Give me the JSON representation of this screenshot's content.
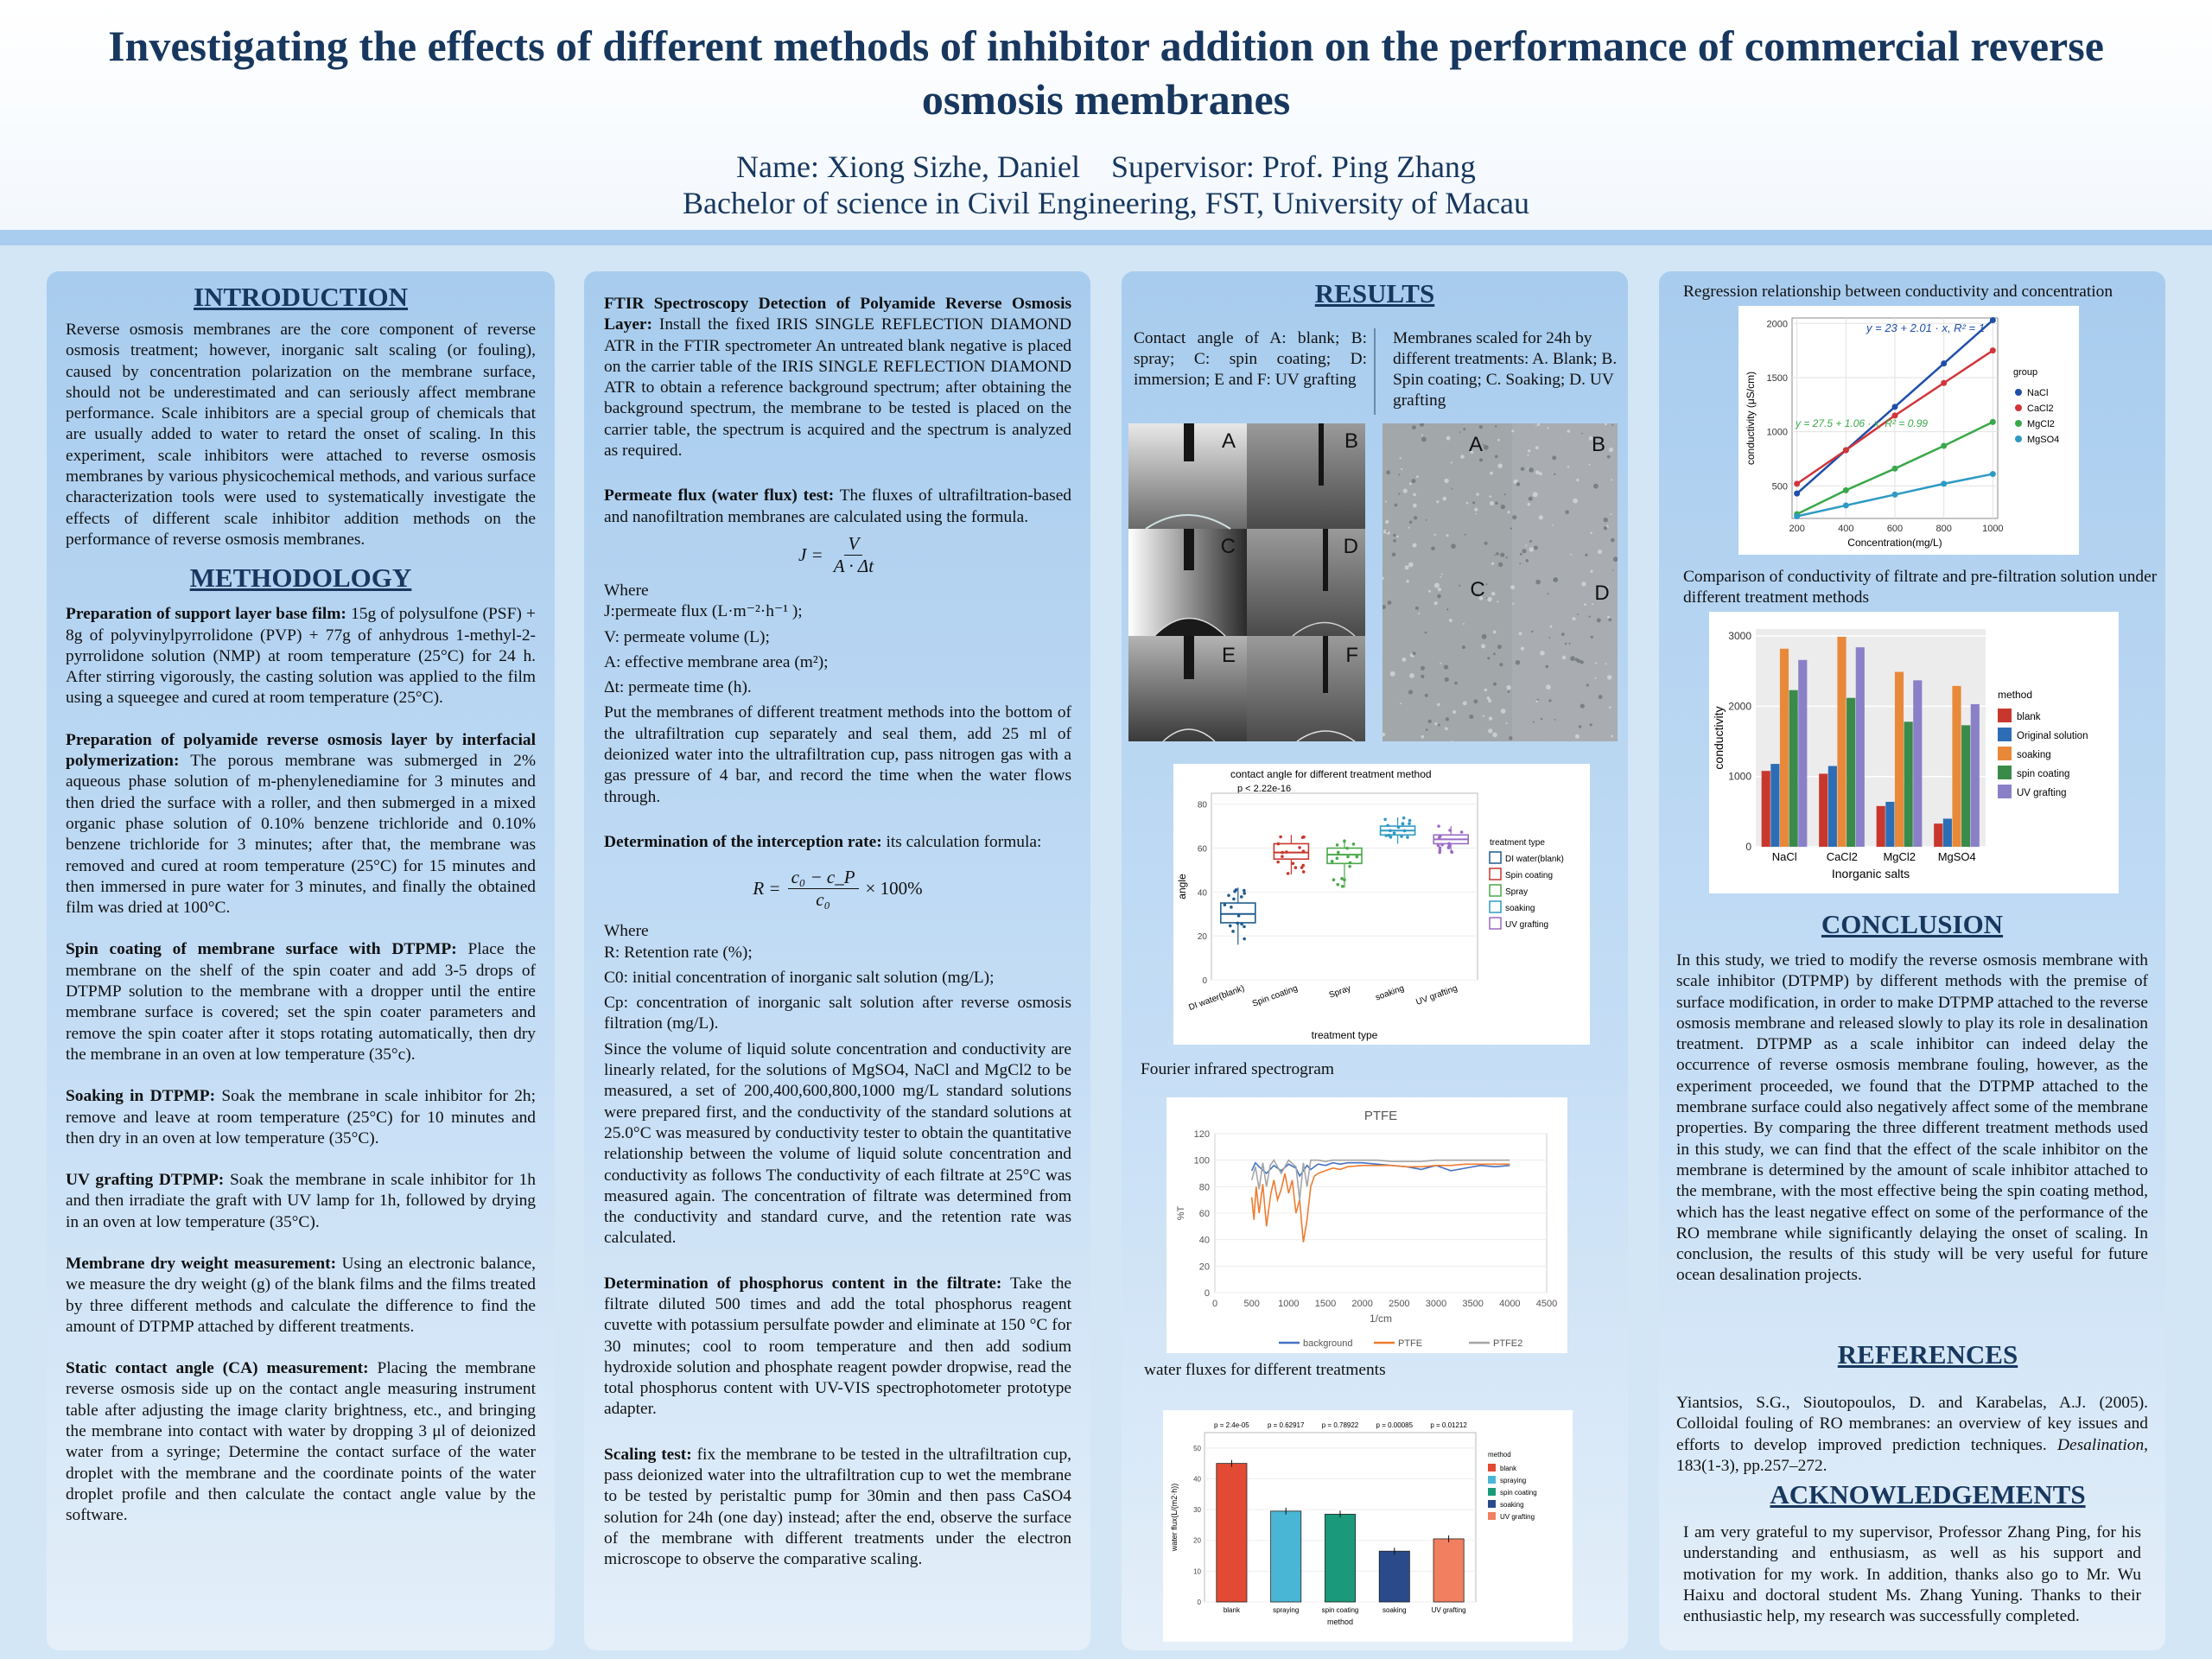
{
  "header": {
    "title": "Investigating the effects of different methods of inhibitor addition on the performance of commercial reverse osmosis membranes",
    "author_line": "Name: Xiong Sizhe, Daniel    Supervisor: Prof. Ping Zhang",
    "affiliation": "Bachelor of science in Civil Engineering, FST, University of Macau"
  },
  "intro": {
    "heading": "INTRODUCTION",
    "text": "Reverse osmosis membranes are the core component of reverse osmosis treatment; however, inorganic salt scaling (or fouling), caused by concentration polarization on the membrane surface, should not be underestimated and can seriously affect membrane performance. Scale inhibitors are a special group of chemicals that are usually added to water to retard the onset of scaling. In this experiment, scale inhibitors were attached to reverse osmosis membranes by various physicochemical methods, and various surface characterization tools were used to systematically investigate the effects of different scale inhibitor addition methods on the performance of reverse osmosis membranes."
  },
  "method": {
    "heading": "METHODOLOGY",
    "items": [
      {
        "label": "Preparation of support layer base film:",
        "text": " 15g of polysulfone (PSF) + 8g of polyvinylpyrrolidone (PVP) + 77g of anhydrous 1-methyl-2-pyrrolidone solution (NMP) at room temperature (25°C) for 24 h. After stirring vigorously, the casting solution was applied to the film using a squeegee and cured at room temperature (25°C)."
      },
      {
        "label": "Preparation of polyamide reverse osmosis layer by interfacial polymerization:",
        "text": " The porous membrane was submerged in 2% aqueous phase solution of m-phenylenediamine for 3 minutes and then dried the surface with a roller, and then submerged in a mixed organic phase solution of 0.10% benzene trichloride and 0.10% benzene trichloride for 3 minutes; after that, the membrane was removed and cured at room temperature (25°C) for 15 minutes and then immersed in pure water for 3 minutes, and finally the obtained film was dried at 100°C."
      },
      {
        "label": "Spin coating of membrane surface with DTPMP:",
        "text": " Place the membrane on the shelf of the spin coater and add 3-5 drops of DTPMP solution to the membrane with a dropper until the entire membrane surface is covered; set the spin coater parameters and remove the spin coater after it stops rotating automatically, then dry the membrane in an oven at low temperature (35°c)."
      },
      {
        "label": "Soaking in DTPMP:",
        "text": " Soak the membrane in scale inhibitor for 2h; remove and leave at room temperature (25°C) for 10 minutes and then dry in an oven at low temperature (35°C)."
      },
      {
        "label": "UV grafting DTPMP:",
        "text": " Soak the membrane in scale inhibitor for 1h and then irradiate the graft with UV lamp for 1h, followed by drying in an oven at low temperature (35°C)."
      },
      {
        "label": "Membrane dry weight measurement:",
        "text": " Using an electronic balance, we measure the dry weight (g) of the blank films and the films treated by three different methods and calculate the difference to find the amount of DTPMP attached by different treatments."
      },
      {
        "label": "Static contact angle (CA) measurement:",
        "text": " Placing the membrane reverse osmosis side up on the contact angle measuring instrument table after adjusting the image clarity brightness, etc., and bringing the membrane into contact with water by dropping 3 μl of deionized water from a syringe; Determine the contact surface of the water droplet with the membrane and the coordinate points of the water droplet profile and then calculate the contact angle value by the software."
      }
    ]
  },
  "col2": {
    "ftir_label": "FTIR Spectroscopy Detection of Polyamide Reverse Osmosis Layer:",
    "ftir_text": " Install the fixed IRIS SINGLE REFLECTION DIAMOND ATR in the FTIR spectrometer An untreated blank negative is placed on the carrier table of the IRIS SINGLE REFLECTION DIAMOND ATR to obtain a reference background spectrum; after obtaining the background spectrum, the membrane to be tested is placed on the carrier table, the spectrum is acquired and the spectrum is analyzed as required.",
    "flux_label": "Permeate flux (water flux) test:",
    "flux_text": " The fluxes of ultrafiltration-based and nanofiltration membranes are calculated using the formula.",
    "flux_formula_lhs": "J =",
    "flux_formula_num": "V",
    "flux_formula_den": "A · Δt",
    "where1": "Where",
    "flux_defs": [
      "J:permeate flux (L·m⁻²·h⁻¹ );",
      "V: permeate volume (L);",
      "A: effective membrane area (m²);",
      "Δt: permeate time (h)."
    ],
    "flux_procedure": "Put the membranes of different treatment methods into the bottom of the ultrafiltration cup separately and seal them, add 25 ml of deionized water into the ultrafiltration cup, pass nitrogen gas with a gas pressure of 4 bar, and record the time when the water flows through.",
    "rej_label": "Determination of the interception rate:",
    "rej_text": " its calculation formula:",
    "rej_formula_lhs": "R =",
    "rej_formula_num": "c₀ − c_P",
    "rej_formula_den": "c₀",
    "rej_formula_rhs": "× 100%",
    "where2": "Where",
    "rej_defs": [
      "R: Retention rate (%);",
      "C0: initial concentration of inorganic salt solution (mg/L);",
      "Cp: concentration of inorganic salt solution after reverse osmosis filtration (mg/L)."
    ],
    "rej_procedure": "Since the volume of liquid solute concentration and conductivity are linearly related, for the solutions of MgSO4, NaCl and MgCl2 to be measured, a set of 200,400,600,800,1000 mg/L standard solutions were prepared first, and the conductivity of the standard solutions at 25.0°C was measured by conductivity tester to obtain the quantitative relationship between the volume of liquid solute concentration and conductivity as follows The conductivity of each filtrate at 25°C was measured again. The concentration of filtrate was determined from the conductivity and standard curve, and the retention rate was calculated.",
    "phos_label": "Determination of phosphorus content in the filtrate:",
    "phos_text": " Take the filtrate diluted 500 times and add the total phosphorus reagent cuvette with potassium persulfate powder and eliminate at 150 °C for 30 minutes; cool to room temperature and then add sodium hydroxide solution and phosphate reagent powder dropwise, read the total phosphorus content with UV-VIS spectrophotometer prototype adapter.",
    "scal_label": "Scaling test:",
    "scal_text": " fix the membrane to be tested in the ultrafiltration cup, pass deionized water into the ultrafiltration cup to wet the membrane to be tested by peristaltic pump for 30min and then pass CaSO4 solution for 24h (one day) instead; after the end, observe the surface of the membrane with different treatments under the electron microscope to observe the comparative scaling."
  },
  "results": {
    "heading": "RESULTS",
    "ca_caption": "Contact angle of A: blank; B: spray; C: spin coating; D: immersion; E and F: UV grafting",
    "sem_caption": "Membranes scaled for 24h by different treatments: A. Blank; B. Spin coating; C. Soaking; D. UV grafting",
    "ca_photo_labels": [
      "A",
      "B",
      "C",
      "D",
      "E",
      "F"
    ],
    "sem_labels": [
      "A",
      "B",
      "C",
      "D"
    ],
    "ftir_caption": "Fourier infrared spectrogram",
    "flux_caption": "water fluxes for different treatments"
  },
  "col4": {
    "reg_caption": "Regression relationship between conductivity and concentration",
    "cond_caption": "Comparison of conductivity of filtrate and pre-filtration solution under different treatment methods",
    "conclusion_heading": "CONCLUSION",
    "conclusion": "In this study, we tried to modify the reverse osmosis membrane with scale inhibitor (DTPMP) by different methods with the premise of surface modification, in order to make DTPMP attached to the reverse osmosis membrane and released slowly to play its role in desalination treatment. DTPMP as a scale inhibitor can indeed delay the occurrence of reverse osmosis membrane fouling, however, as the experiment proceeded, we found that the DTPMP attached to the membrane surface could also negatively affect some of the membrane properties. By comparing the three different treatment methods used in this study, we can find that the effect of the scale inhibitor on the membrane is determined by the amount of scale inhibitor attached to the membrane, with the most effective being the spin coating method, which has the least negative effect on some of the performance of the RO membrane while significantly delaying the onset of scaling. In conclusion, the results of this study will be very useful for future ocean desalination projects.",
    "references_heading": "REFERENCES",
    "reference_main": "Yiantsios, S.G., Sioutopoulos, D. and Karabelas, A.J. (2005). Colloidal fouling of RO membranes: an overview of key issues and efforts to develop improved prediction techniques. ",
    "reference_journal": "Desalination",
    "reference_tail": ", 183(1-3), pp.257–272.",
    "ack_heading": "ACKNOWLEDGEMENTS",
    "ack": "I am very grateful to my supervisor, Professor Zhang Ping, for his understanding and enthusiasm, as well as his support and motivation for my work. In addition, thanks also go to Mr. Wu Haixu and doctoral student Ms. Zhang Yuning. Thanks to their enthusiastic help, my research was successfully completed."
  },
  "chart_data": [
    {
      "type": "scatter",
      "name": "conductivity-regression",
      "xlabel": "Concentration(mg/L)",
      "ylabel": "conductivity (μS/cm)",
      "xlim": [
        180,
        1020
      ],
      "ylim": [
        200,
        2050
      ],
      "xticks": [
        200,
        400,
        600,
        800,
        1000
      ],
      "yticks": [
        500,
        1000,
        1500,
        2000
      ],
      "legend_title": "group",
      "legend_position": "right",
      "annotations": [
        "y = 23 + 2.01 · x,  R² = 1",
        "y = 27.5 + 1.06 · x,  R² = 0.99"
      ],
      "x": [
        200,
        400,
        600,
        800,
        1000
      ],
      "series": [
        {
          "name": "NaCl",
          "color": "#1f4ea8",
          "values": [
            430,
            830,
            1230,
            1630,
            2030
          ]
        },
        {
          "name": "CaCl2",
          "color": "#d0353a",
          "values": [
            520,
            830,
            1150,
            1450,
            1750
          ]
        },
        {
          "name": "MgCl2",
          "color": "#3aa84a",
          "values": [
            240,
            460,
            660,
            870,
            1090
          ]
        },
        {
          "name": "MgSO4",
          "color": "#2e9ac4",
          "values": [
            220,
            320,
            420,
            520,
            610
          ]
        }
      ]
    },
    {
      "type": "bar",
      "name": "conductivity-comparison",
      "xlabel": "Inorganic salts",
      "ylabel": "conductivity",
      "ylim": [
        0,
        3100
      ],
      "yticks": [
        0,
        1000,
        2000,
        3000
      ],
      "legend_title": "method",
      "legend_position": "right",
      "categories": [
        "NaCl",
        "CaCl2",
        "MgCl2",
        "MgSO4"
      ],
      "series": [
        {
          "name": "blank",
          "color": "#c8372d",
          "values": [
            1080,
            1040,
            580,
            330
          ]
        },
        {
          "name": "Original solution",
          "color": "#2c6db5",
          "values": [
            1180,
            1150,
            640,
            400
          ]
        },
        {
          "name": "soaking",
          "color": "#e8893a",
          "values": [
            2820,
            2990,
            2490,
            2290
          ]
        },
        {
          "name": "spin coating",
          "color": "#3a8a4a",
          "values": [
            2230,
            2120,
            1780,
            1730
          ]
        },
        {
          "name": "UV grafting",
          "color": "#8a80c8",
          "values": [
            2660,
            2840,
            2370,
            2030
          ]
        }
      ]
    },
    {
      "type": "box",
      "name": "contact-angle-box",
      "title": "contact angle for different treatment method",
      "annotation": "p < 2.22e-16",
      "xlabel": "treatment type",
      "ylabel": "angle",
      "ylim": [
        0,
        85
      ],
      "yticks": [
        0,
        20,
        40,
        60,
        80
      ],
      "legend_title": "treatment type",
      "categories": [
        "DI water(blank)",
        "Spin coating",
        "Spray",
        "soaking",
        "UV grafting"
      ],
      "colors": [
        "#1f5c8f",
        "#c8372d",
        "#4aa84a",
        "#2e9ac4",
        "#9a6ac4"
      ],
      "stats": [
        {
          "q1": 26,
          "median": 30,
          "q3": 35,
          "min": 16,
          "max": 42
        },
        {
          "q1": 55,
          "median": 58,
          "q3": 62,
          "min": 48,
          "max": 66
        },
        {
          "q1": 53,
          "median": 57,
          "q3": 60,
          "min": 42,
          "max": 64
        },
        {
          "q1": 66,
          "median": 68,
          "q3": 70,
          "min": 62,
          "max": 74
        },
        {
          "q1": 62,
          "median": 64,
          "q3": 66,
          "min": 58,
          "max": 70
        }
      ]
    },
    {
      "type": "line",
      "name": "ftir-spectrum",
      "title": "PTFE",
      "xlabel": "1/cm",
      "ylabel": "%T",
      "xlim": [
        0,
        4500
      ],
      "ylim": [
        0,
        120
      ],
      "xticks": [
        0,
        500,
        1000,
        1500,
        2000,
        2500,
        3000,
        3500,
        4000,
        4500
      ],
      "yticks": [
        0,
        20,
        40,
        60,
        80,
        100,
        120
      ],
      "legend_position": "bottom",
      "series": [
        {
          "name": "background",
          "color": "#4472c4",
          "x": [
            500,
            550,
            600,
            700,
            800,
            900,
            1000,
            1100,
            1150,
            1200,
            1250,
            1300,
            1400,
            1500,
            1600,
            1700,
            1800,
            2000,
            2200,
            2400,
            2600,
            2800,
            3000,
            3200,
            3400,
            3600,
            3800,
            4000
          ],
          "y": [
            92,
            98,
            95,
            90,
            96,
            92,
            97,
            94,
            88,
            92,
            96,
            93,
            97,
            96,
            98,
            97,
            98,
            98,
            97,
            96,
            95,
            93,
            96,
            92,
            94,
            96,
            95,
            96
          ]
        },
        {
          "name": "PTFE",
          "color": "#ed7d31",
          "x": [
            500,
            530,
            560,
            600,
            650,
            700,
            760,
            800,
            850,
            900,
            950,
            1000,
            1050,
            1100,
            1150,
            1200,
            1250,
            1300,
            1350,
            1400,
            1500,
            1600,
            1700,
            1800,
            2000,
            2200,
            2400,
            2600,
            2800,
            3000,
            3200,
            3400,
            3600,
            4000
          ],
          "y": [
            72,
            55,
            80,
            60,
            82,
            50,
            75,
            85,
            70,
            78,
            90,
            75,
            85,
            60,
            70,
            38,
            55,
            80,
            88,
            90,
            92,
            94,
            93,
            95,
            96,
            96,
            96,
            95,
            95,
            96,
            96,
            97,
            97,
            97
          ]
        },
        {
          "name": "PTFE2",
          "color": "#a5a5a5",
          "x": [
            500,
            550,
            600,
            650,
            700,
            750,
            800,
            900,
            1000,
            1100,
            1150,
            1200,
            1250,
            1300,
            1400,
            1500,
            1600,
            1700,
            1800,
            2000,
            2200,
            2400,
            2600,
            2800,
            3000,
            3200,
            3400,
            3600,
            4000
          ],
          "y": [
            85,
            95,
            78,
            98,
            80,
            96,
            100,
            90,
            100,
            95,
            70,
            98,
            80,
            100,
            100,
            99,
            100,
            100,
            100,
            100,
            100,
            99,
            99,
            99,
            100,
            100,
            100,
            100,
            100
          ]
        }
      ]
    },
    {
      "type": "bar",
      "name": "water-flux",
      "xlabel": "method",
      "ylabel": "water flux(L/(m2·h))",
      "ylim": [
        0,
        55
      ],
      "yticks": [
        0,
        10,
        20,
        30,
        40,
        50
      ],
      "legend_title": "method",
      "categories": [
        "blank",
        "spraying",
        "spin coating",
        "soaking",
        "UV grafting"
      ],
      "colors": [
        "#e34a33",
        "#4ab6d6",
        "#1a9a7a",
        "#2a4a8a",
        "#f08060"
      ],
      "values": [
        45,
        29.5,
        28.5,
        16.5,
        20.5
      ],
      "annotations": [
        "p = 2.4e-05",
        "p = 0.62917",
        "p = 0.78922",
        "p = 0.00085",
        "p = 0.01212"
      ]
    }
  ]
}
